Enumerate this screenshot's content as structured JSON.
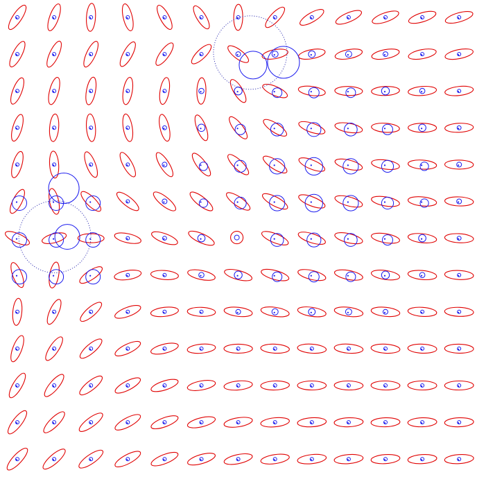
{
  "figure": {
    "grid": {
      "rows": 13,
      "cols": 13
    },
    "colors": {
      "ellipse": "#e00000",
      "circle": "#1a1aee",
      "background": "#ffffff"
    },
    "singularities": [
      {
        "row": 0.92,
        "col": 5.95,
        "kind": "source"
      },
      {
        "row": 6.0,
        "col": 1.0,
        "kind": "sink"
      }
    ],
    "center_marker": {
      "row": 6,
      "col": 6
    }
  }
}
